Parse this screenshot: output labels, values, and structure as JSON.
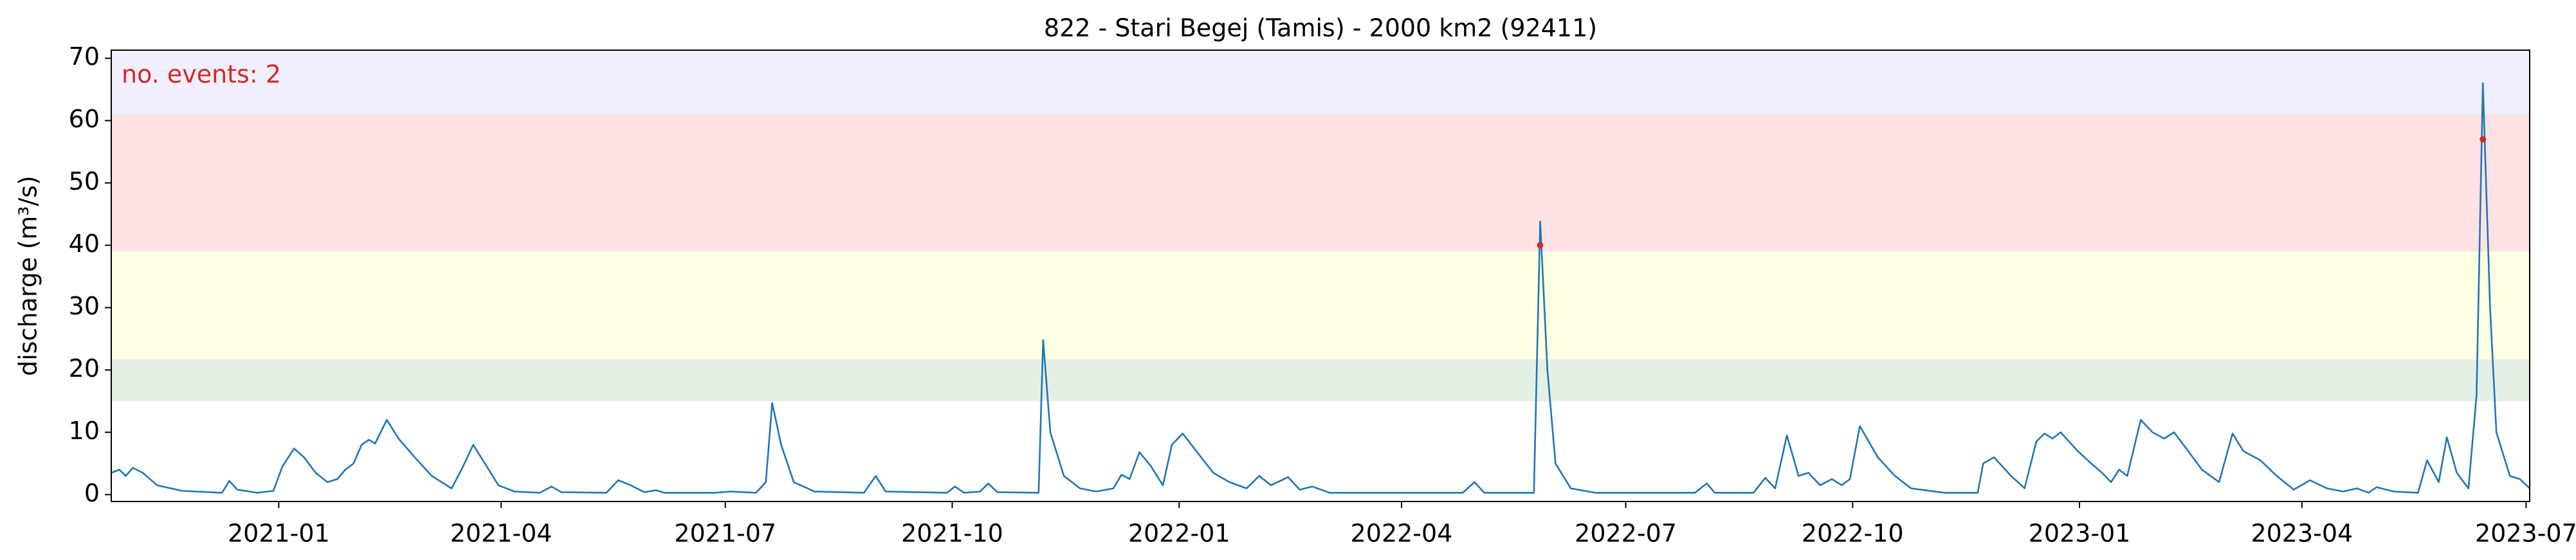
{
  "chart_data": {
    "type": "line",
    "title": "822 - Stari Begej (Tamis) - 2000 km2 (92411)",
    "y_label": "discharge (m³/s)",
    "annotation": {
      "text": "no. events: 2",
      "color": "#d62728"
    },
    "xlim": [
      2020.814,
      2023.5
    ],
    "ylim": [
      -1.1,
      71.3
    ],
    "xticks": [
      {
        "value": 2021.0,
        "label": "2021-01"
      },
      {
        "value": 2021.247,
        "label": "2021-04"
      },
      {
        "value": 2021.496,
        "label": "2021-07"
      },
      {
        "value": 2021.748,
        "label": "2021-10"
      },
      {
        "value": 2022.0,
        "label": "2022-01"
      },
      {
        "value": 2022.247,
        "label": "2022-04"
      },
      {
        "value": 2022.496,
        "label": "2022-07"
      },
      {
        "value": 2022.748,
        "label": "2022-10"
      },
      {
        "value": 2023.0,
        "label": "2023-01"
      },
      {
        "value": 2023.247,
        "label": "2023-04"
      },
      {
        "value": 2023.496,
        "label": "2023-07"
      }
    ],
    "yticks": [
      0,
      10,
      20,
      30,
      40,
      50,
      60,
      70
    ],
    "bands": [
      {
        "from": 15,
        "to": 21.7,
        "color": "#e5f0e5"
      },
      {
        "from": 21.7,
        "to": 39,
        "color": "#fefee2"
      },
      {
        "from": 39,
        "to": 61,
        "color": "#ffe2e4"
      },
      {
        "from": 61,
        "to": 71.3,
        "color": "#f1effb"
      }
    ],
    "series": [
      {
        "color": "#1f77b4",
        "x": [
          2020.814,
          2020.823,
          2020.83,
          2020.838,
          2020.849,
          2020.865,
          2020.893,
          2020.937,
          2020.945,
          2020.954,
          2020.976,
          2020.994,
          2021.004,
          2021.017,
          2021.028,
          2021.041,
          2021.054,
          2021.065,
          2021.074,
          2021.083,
          2021.092,
          2021.1,
          2021.107,
          2021.12,
          2021.133,
          2021.151,
          2021.17,
          2021.192,
          2021.203,
          2021.216,
          2021.229,
          2021.244,
          2021.262,
          2021.29,
          2021.303,
          2021.314,
          2021.364,
          2021.377,
          2021.391,
          2021.406,
          2021.419,
          2021.428,
          2021.484,
          2021.502,
          2021.53,
          2021.541,
          2021.548,
          2021.558,
          2021.572,
          2021.595,
          2021.65,
          2021.663,
          2021.674,
          2021.742,
          2021.751,
          2021.761,
          2021.779,
          2021.788,
          2021.798,
          2021.844,
          2021.849,
          2021.857,
          2021.872,
          2021.89,
          2021.908,
          2021.927,
          2021.936,
          2021.945,
          2021.956,
          2021.969,
          2021.982,
          2021.992,
          2022.004,
          2022.019,
          2022.038,
          2022.056,
          2022.075,
          2022.089,
          2022.102,
          2022.121,
          2022.134,
          2022.148,
          2022.167,
          2022.315,
          2022.328,
          2022.339,
          2022.394,
          2022.401,
          2022.409,
          2022.418,
          2022.435,
          2022.462,
          2022.573,
          2022.586,
          2022.595,
          2022.638,
          2022.651,
          2022.662,
          2022.675,
          2022.688,
          2022.699,
          2022.712,
          2022.725,
          2022.736,
          2022.745,
          2022.756,
          2022.776,
          2022.795,
          2022.813,
          2022.85,
          2022.887,
          2022.893,
          2022.905,
          2022.924,
          2022.939,
          2022.952,
          2022.961,
          2022.97,
          2022.979,
          2022.998,
          2023.013,
          2023.025,
          2023.035,
          2023.044,
          2023.053,
          2023.068,
          2023.081,
          2023.094,
          2023.105,
          2023.118,
          2023.136,
          2023.155,
          2023.17,
          2023.182,
          2023.201,
          2023.219,
          2023.238,
          2023.256,
          2023.275,
          2023.293,
          2023.308,
          2023.321,
          2023.33,
          2023.349,
          2023.376,
          2023.386,
          2023.399,
          2023.408,
          2023.419,
          2023.432,
          2023.441,
          2023.448,
          2023.456,
          2023.463,
          2023.478,
          2023.489,
          2023.5
        ],
        "values": [
          3.5,
          4.0,
          3.0,
          4.3,
          3.5,
          1.5,
          0.6,
          0.3,
          2.2,
          0.8,
          0.3,
          0.6,
          4.5,
          7.4,
          6.0,
          3.5,
          2.0,
          2.5,
          4.0,
          5.0,
          8.0,
          8.8,
          8.2,
          12.0,
          9.0,
          6.0,
          3.0,
          1.0,
          4.0,
          8.0,
          5.0,
          1.5,
          0.5,
          0.3,
          1.3,
          0.4,
          0.3,
          2.3,
          1.5,
          0.4,
          0.7,
          0.3,
          0.3,
          0.5,
          0.3,
          2.0,
          14.7,
          8.0,
          2.0,
          0.5,
          0.3,
          3.0,
          0.5,
          0.3,
          1.3,
          0.3,
          0.5,
          1.8,
          0.4,
          0.3,
          24.8,
          10.0,
          3.0,
          1.0,
          0.5,
          1.0,
          3.2,
          2.5,
          6.8,
          4.5,
          1.5,
          8.0,
          9.8,
          7.0,
          3.5,
          2.0,
          1.0,
          3.0,
          1.5,
          2.8,
          0.8,
          1.3,
          0.3,
          0.3,
          2.0,
          0.3,
          0.3,
          43.8,
          20.0,
          5.0,
          1.0,
          0.3,
          0.3,
          1.8,
          0.3,
          0.3,
          2.7,
          1.0,
          9.5,
          3.0,
          3.5,
          1.5,
          2.5,
          1.5,
          2.5,
          11.0,
          6.0,
          3.0,
          1.0,
          0.3,
          0.3,
          5.0,
          6.0,
          3.0,
          1.0,
          8.5,
          9.8,
          9.0,
          10.0,
          7.0,
          5.0,
          3.5,
          2.0,
          4.0,
          3.0,
          12.0,
          10.0,
          9.0,
          10.0,
          7.5,
          4.0,
          2.0,
          9.8,
          7.0,
          5.5,
          3.0,
          0.8,
          2.3,
          1.0,
          0.5,
          1.0,
          0.3,
          1.2,
          0.5,
          0.3,
          5.5,
          2.0,
          9.2,
          3.5,
          1.0,
          16.0,
          66.0,
          30.0,
          10.0,
          3.0,
          2.5,
          1.0
        ]
      }
    ],
    "events": {
      "color": "#d62728",
      "x": [
        2022.401,
        2023.448
      ],
      "values": [
        40,
        57
      ]
    }
  }
}
